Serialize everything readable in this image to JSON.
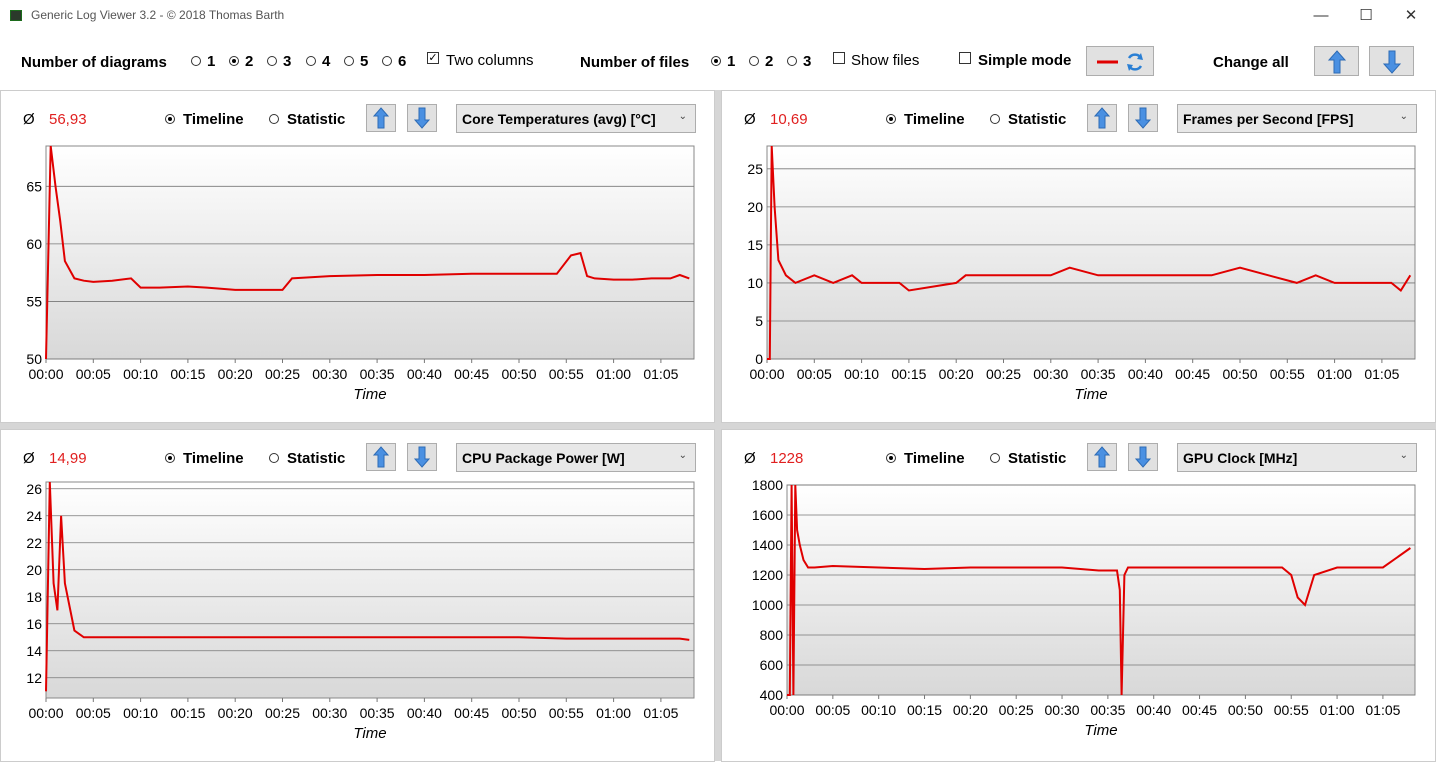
{
  "window": {
    "title": "Generic Log Viewer 3.2 - © 2018 Thomas Barth",
    "minimize": "—",
    "maximize": "☐",
    "close": "✕"
  },
  "toolbar": {
    "diagrams_label": "Number of diagrams",
    "diagram_options": [
      "1",
      "2",
      "3",
      "4",
      "5",
      "6"
    ],
    "diagram_selected": "2",
    "two_columns_label": "Two columns",
    "two_columns_checked": true,
    "files_label": "Number of files",
    "file_options": [
      "1",
      "2",
      "3"
    ],
    "file_selected": "1",
    "show_files_label": "Show files",
    "simple_mode_label": "Simple mode",
    "change_all_label": "Change all"
  },
  "panels": [
    {
      "avg_symbol": "Ø",
      "avg": "56,93",
      "timeline": "Timeline",
      "statistic": "Statistic",
      "metric": "Core Temperatures (avg) [°C]"
    },
    {
      "avg_symbol": "Ø",
      "avg": "10,69",
      "timeline": "Timeline",
      "statistic": "Statistic",
      "metric": "Frames per Second [FPS]"
    },
    {
      "avg_symbol": "Ø",
      "avg": "14,99",
      "timeline": "Timeline",
      "statistic": "Statistic",
      "metric": "CPU Package Power [W]"
    },
    {
      "avg_symbol": "Ø",
      "avg": "1228",
      "timeline": "Timeline",
      "statistic": "Statistic",
      "metric": "GPU Clock [MHz]"
    }
  ],
  "colors": {
    "line": "#e00000",
    "avg": "#e02020"
  },
  "chart_data": [
    {
      "type": "line",
      "xlabel": "Time",
      "x_ticks": [
        "00:00",
        "00:05",
        "00:10",
        "00:15",
        "00:20",
        "00:25",
        "00:30",
        "00:35",
        "00:40",
        "00:45",
        "00:50",
        "00:55",
        "01:00",
        "01:05"
      ],
      "y_ticks": [
        50,
        55,
        60,
        65
      ],
      "ylim": [
        50,
        68.5
      ],
      "xlim_min": [
        0,
        68.5
      ],
      "series": [
        {
          "x": [
            0,
            0.5,
            1,
            1.5,
            2,
            3,
            4,
            5,
            7,
            9,
            10,
            12,
            15,
            17,
            20,
            22,
            24,
            25,
            26,
            28,
            30,
            35,
            40,
            45,
            50,
            54,
            55.5,
            56.5,
            57.2,
            58,
            60,
            62,
            64,
            66,
            67,
            68
          ],
          "y": [
            50,
            68.5,
            65,
            62,
            58.5,
            57,
            56.8,
            56.7,
            56.8,
            57,
            56.2,
            56.2,
            56.3,
            56.2,
            56,
            56,
            56,
            56,
            57,
            57.1,
            57.2,
            57.3,
            57.3,
            57.4,
            57.4,
            57.4,
            59,
            59.2,
            57.2,
            57,
            56.9,
            56.9,
            57,
            57,
            57.3,
            57
          ]
        }
      ]
    },
    {
      "type": "line",
      "xlabel": "Time",
      "x_ticks": [
        "00:00",
        "00:05",
        "00:10",
        "00:15",
        "00:20",
        "00:25",
        "00:30",
        "00:35",
        "00:40",
        "00:45",
        "00:50",
        "00:55",
        "01:00",
        "01:05"
      ],
      "y_ticks": [
        0,
        5,
        10,
        15,
        20,
        25
      ],
      "ylim": [
        0,
        28
      ],
      "xlim_min": [
        0,
        68.5
      ],
      "series": [
        {
          "x": [
            0,
            0.3,
            0.5,
            0.8,
            1.2,
            2,
            3,
            5,
            7,
            9,
            10,
            14,
            15,
            20,
            21,
            23,
            30,
            32,
            35,
            40,
            47,
            50,
            56,
            58,
            60,
            62,
            66,
            67,
            68
          ],
          "y": [
            0,
            0,
            28,
            20,
            13,
            11,
            10,
            11,
            10,
            11,
            10,
            10,
            9,
            10,
            11,
            11,
            11,
            12,
            11,
            11,
            11,
            12,
            10,
            11,
            10,
            10,
            10,
            9,
            11
          ]
        }
      ]
    },
    {
      "type": "line",
      "xlabel": "Time",
      "x_ticks": [
        "00:00",
        "00:05",
        "00:10",
        "00:15",
        "00:20",
        "00:25",
        "00:30",
        "00:35",
        "00:40",
        "00:45",
        "00:50",
        "00:55",
        "01:00",
        "01:05"
      ],
      "y_ticks": [
        12,
        14,
        16,
        18,
        20,
        22,
        24,
        26
      ],
      "ylim": [
        10.5,
        26.5
      ],
      "xlim_min": [
        0,
        68.5
      ],
      "series": [
        {
          "x": [
            0,
            0.4,
            0.8,
            1.2,
            1.6,
            2,
            3,
            4,
            5,
            10,
            20,
            30,
            40,
            50,
            55,
            60,
            65,
            67,
            68
          ],
          "y": [
            11,
            26.5,
            19,
            17,
            24,
            19,
            15.5,
            15,
            15,
            15,
            15,
            15,
            15,
            15,
            14.9,
            14.9,
            14.9,
            14.9,
            14.8
          ]
        }
      ]
    },
    {
      "type": "line",
      "xlabel": "Time",
      "x_ticks": [
        "00:00",
        "00:05",
        "00:10",
        "00:15",
        "00:20",
        "00:25",
        "00:30",
        "00:35",
        "00:40",
        "00:45",
        "00:50",
        "00:55",
        "01:00",
        "01:05"
      ],
      "y_ticks": [
        400,
        600,
        800,
        1000,
        1200,
        1400,
        1600,
        1800
      ],
      "ylim": [
        400,
        1800
      ],
      "xlim_min": [
        0,
        68.5
      ],
      "series": [
        {
          "x": [
            0,
            0.3,
            0.5,
            0.7,
            0.9,
            1.1,
            1.4,
            1.8,
            2.3,
            3,
            5,
            10,
            15,
            20,
            25,
            30,
            34,
            36,
            36.3,
            36.5,
            36.8,
            37.2,
            40,
            45,
            50,
            54,
            55,
            55.7,
            56.5,
            57.5,
            60,
            65,
            68
          ],
          "y": [
            400,
            400,
            1800,
            400,
            1800,
            1500,
            1400,
            1300,
            1250,
            1250,
            1260,
            1250,
            1240,
            1250,
            1250,
            1250,
            1230,
            1230,
            1100,
            400,
            1200,
            1250,
            1250,
            1250,
            1250,
            1250,
            1200,
            1050,
            1000,
            1200,
            1250,
            1250,
            1380
          ]
        }
      ]
    }
  ]
}
